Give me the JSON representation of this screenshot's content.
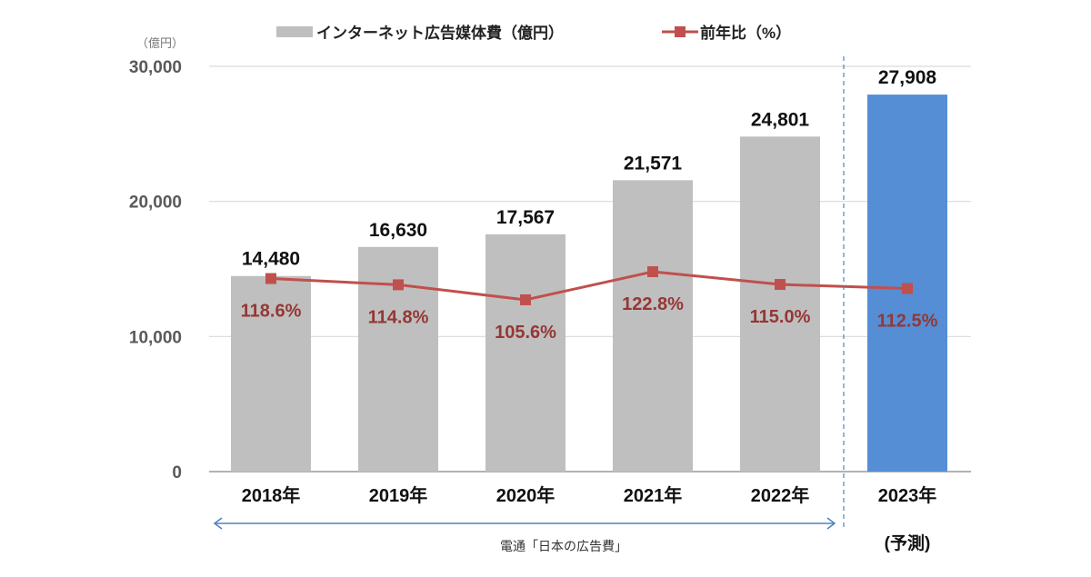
{
  "chart_data": {
    "type": "bar",
    "unit_label": "（億円）",
    "categories": [
      "2018年",
      "2019年",
      "2020年",
      "2021年",
      "2022年",
      "2023年"
    ],
    "forecast_note": "(予測)",
    "series": [
      {
        "name": "インターネット広告媒体費（億円）",
        "type": "bar",
        "values": [
          14480,
          16630,
          17567,
          21571,
          24801,
          27908
        ],
        "labels": [
          "14,480",
          "16,630",
          "17,567",
          "21,571",
          "24,801",
          "27,908"
        ]
      },
      {
        "name": "前年比（%）",
        "type": "line",
        "values": [
          118.6,
          114.8,
          105.6,
          122.8,
          115.0,
          112.5
        ],
        "labels": [
          "118.6%",
          "114.8%",
          "105.6%",
          "122.8%",
          "115.0%",
          "112.5%"
        ]
      }
    ],
    "ylim": [
      0,
      30000
    ],
    "yticks": [
      0,
      10000,
      20000,
      30000
    ],
    "ytick_labels": [
      "0",
      "10,000",
      "20,000",
      "30,000"
    ],
    "grid": true,
    "legend": "top",
    "source": "電通「日本の広告費」",
    "colors": {
      "bar": "#bfbfbf",
      "forecast_bar": "#558ed5",
      "line": "#c0504d",
      "pct_label": "#953735"
    }
  }
}
